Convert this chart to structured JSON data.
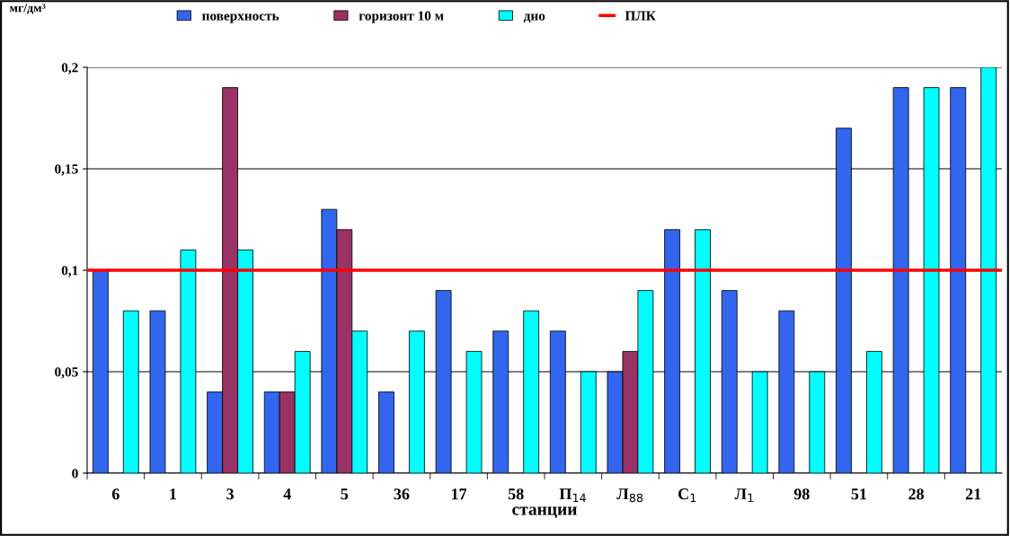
{
  "chart_data": {
    "type": "bar",
    "ylabel": "мг/дм³",
    "xlabel": "станции",
    "categories": [
      "6",
      "1",
      "3",
      "4",
      "5",
      "36",
      "17",
      "58",
      "П$_{14}$",
      "Л$_{88}$",
      "С$_{1}$",
      "Л$_{1}$",
      "98",
      "51",
      "28",
      "21"
    ],
    "series": [
      {
        "name": "поверхность",
        "color": "#3366ee",
        "values": [
          0.1,
          0.08,
          0.04,
          0.04,
          0.13,
          0.04,
          0.09,
          0.07,
          0.07,
          0.05,
          0.12,
          0.09,
          0.08,
          0.17,
          0.19,
          0.19
        ]
      },
      {
        "name": "горизонт 10 м",
        "color": "#993366",
        "values": [
          null,
          null,
          0.19,
          0.04,
          0.12,
          null,
          null,
          null,
          null,
          0.06,
          null,
          null,
          null,
          null,
          null,
          null
        ]
      },
      {
        "name": "дно",
        "color": "#00ffff",
        "values": [
          0.08,
          0.11,
          0.11,
          0.06,
          0.07,
          0.07,
          0.06,
          0.08,
          0.05,
          0.09,
          0.12,
          0.05,
          0.05,
          0.06,
          0.19,
          0.2
        ]
      }
    ],
    "ylim": [
      0,
      0.2
    ],
    "yticks": [
      0,
      {
        "value": 0.05,
        "label": "0,05"
      },
      {
        "value": 0.1,
        "label": "0,1"
      },
      {
        "value": 0.15,
        "label": "0,15"
      },
      {
        "value": 0.2,
        "label": "0,2"
      }
    ],
    "ref_lines": [
      {
        "axis": "y",
        "value": 0.1,
        "label": "ПЛК",
        "color": "#ff0000"
      }
    ],
    "grid": "y",
    "legend": "top"
  }
}
